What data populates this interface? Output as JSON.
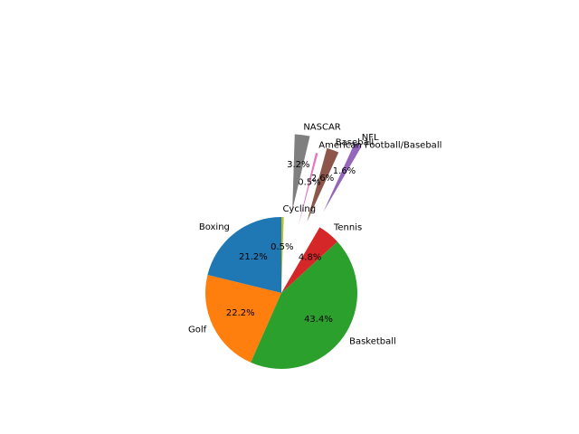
{
  "chart_data": {
    "type": "pie",
    "title": "",
    "start_angle_deg": 90,
    "direction": "counterclockwise",
    "slices": [
      {
        "label": "Boxing",
        "value": 21.2,
        "pct_label": "21.2%",
        "color": "#1f77b4",
        "explode": 0
      },
      {
        "label": "Golf",
        "value": 22.2,
        "pct_label": "22.2%",
        "color": "#ff7f0e",
        "explode": 0
      },
      {
        "label": "Basketball",
        "value": 43.4,
        "pct_label": "43.4%",
        "color": "#2ca02c",
        "explode": 0
      },
      {
        "label": "Tennis",
        "value": 4.8,
        "pct_label": "4.8%",
        "color": "#d62728",
        "explode": 0
      },
      {
        "label": "NFL",
        "value": 1.6,
        "pct_label": "1.6%",
        "color": "#9467bd",
        "explode": 1.2
      },
      {
        "label": "Baseball",
        "value": 2.6,
        "pct_label": "2.6%",
        "color": "#8c564b",
        "explode": 1.0
      },
      {
        "label": "American Football/Baseball",
        "value": 0.5,
        "pct_label": "0.5%",
        "color": "#e377c2",
        "explode": 0.9
      },
      {
        "label": "NASCAR",
        "value": 3.2,
        "pct_label": "3.2%",
        "color": "#7f7f7f",
        "explode": 1.1
      },
      {
        "label": "Cycling",
        "value": 0.5,
        "pct_label": "0.5%",
        "color": "#bcbd22",
        "explode": 0
      }
    ]
  }
}
